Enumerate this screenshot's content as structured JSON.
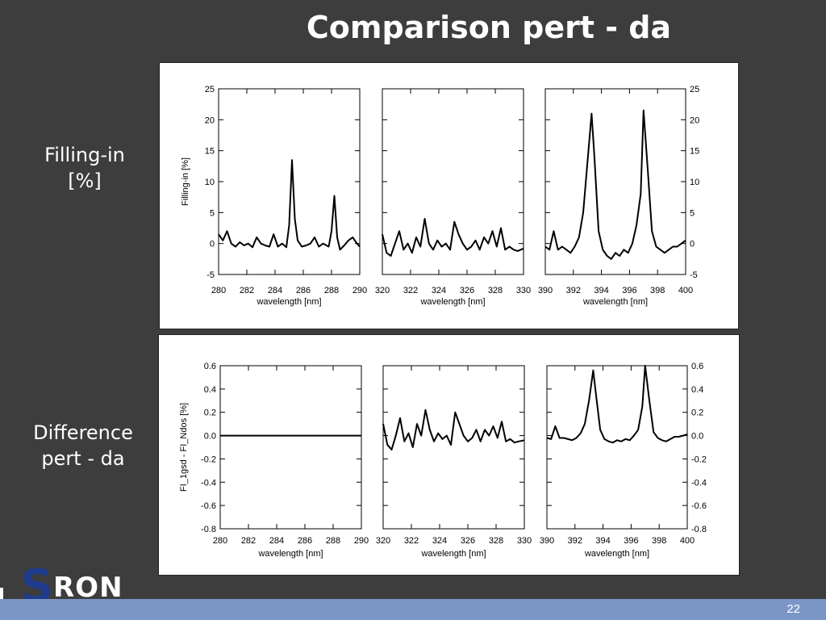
{
  "slide": {
    "title": "Comparison pert - da",
    "label_top": [
      "Filling-in",
      "[%]"
    ],
    "label_bottom": [
      "Difference",
      "pert - da"
    ],
    "page_number": "22",
    "logo_s": "S",
    "logo_rest": "RON"
  },
  "chart_data": [
    {
      "type": "line",
      "title": "",
      "ylabel": "Filling-in [%]",
      "ylim": [
        -5,
        25
      ],
      "yticks": [
        -5,
        0,
        5,
        10,
        15,
        20,
        25
      ],
      "panels": [
        {
          "xlabel": "wavelength [nm]",
          "xlim": [
            280,
            290
          ],
          "xticks": [
            280,
            282,
            284,
            286,
            288,
            290
          ],
          "series": [
            {
              "x": [
                280,
                280.3,
                280.6,
                280.9,
                281.2,
                281.5,
                281.8,
                282.1,
                282.4,
                282.7,
                283.0,
                283.3,
                283.6,
                283.9,
                284.2,
                284.5,
                284.8,
                285.0,
                285.2,
                285.4,
                285.6,
                285.9,
                286.2,
                286.5,
                286.8,
                287.1,
                287.4,
                287.8,
                288.0,
                288.2,
                288.4,
                288.6,
                288.9,
                289.2,
                289.5,
                289.8,
                290
              ],
              "y": [
                1.5,
                0.5,
                2.0,
                0.0,
                -0.5,
                0.2,
                -0.3,
                0.0,
                -0.6,
                1.0,
                0.0,
                -0.3,
                -0.5,
                1.5,
                -0.5,
                0.0,
                -0.6,
                3.0,
                13.5,
                4.0,
                0.5,
                -0.5,
                -0.3,
                0.0,
                1.0,
                -0.5,
                0.0,
                -0.5,
                2.0,
                7.7,
                1.0,
                -1.0,
                -0.3,
                0.5,
                1.0,
                0.0,
                -0.5
              ]
            }
          ]
        },
        {
          "xlabel": "wavelength [nm]",
          "xlim": [
            320,
            330
          ],
          "xticks": [
            320,
            322,
            324,
            326,
            328,
            330
          ],
          "series": [
            {
              "x": [
                320,
                320.3,
                320.6,
                320.9,
                321.2,
                321.5,
                321.8,
                322.1,
                322.4,
                322.7,
                323.0,
                323.3,
                323.6,
                323.9,
                324.2,
                324.5,
                324.8,
                325.1,
                325.4,
                325.7,
                326.0,
                326.3,
                326.6,
                326.9,
                327.2,
                327.5,
                327.8,
                328.1,
                328.4,
                328.7,
                329.0,
                329.3,
                329.6,
                330
              ],
              "y": [
                1.5,
                -1.5,
                -2.0,
                0.0,
                2.0,
                -1.0,
                0.0,
                -1.5,
                1.0,
                -0.5,
                4.0,
                0.0,
                -1.0,
                0.5,
                -0.5,
                0.0,
                -1.0,
                3.5,
                1.5,
                0.0,
                -1.0,
                -0.5,
                0.5,
                -1.0,
                1.0,
                0.0,
                2.0,
                -0.5,
                2.5,
                -1.0,
                -0.5,
                -1.0,
                -1.2,
                -0.8
              ]
            }
          ]
        },
        {
          "xlabel": "wavelength [nm]",
          "xlim": [
            390,
            400
          ],
          "xticks": [
            390,
            392,
            394,
            396,
            398,
            400
          ],
          "series": [
            {
              "x": [
                390,
                390.3,
                390.6,
                390.9,
                391.2,
                391.5,
                391.8,
                392.1,
                392.4,
                392.7,
                393.0,
                393.3,
                393.5,
                393.8,
                394.1,
                394.4,
                394.7,
                395.0,
                395.3,
                395.6,
                395.9,
                396.2,
                396.5,
                396.8,
                397.0,
                397.3,
                397.6,
                397.9,
                398.2,
                398.5,
                398.8,
                399.1,
                399.4,
                399.7,
                400
              ],
              "y": [
                -0.5,
                -1.0,
                2.0,
                -1.0,
                -0.5,
                -1.0,
                -1.5,
                -0.5,
                1.0,
                5.0,
                13.0,
                21.0,
                14.0,
                2.0,
                -1.0,
                -2.0,
                -2.5,
                -1.5,
                -2.0,
                -1.0,
                -1.5,
                0.0,
                3.0,
                8.0,
                21.5,
                12.0,
                2.0,
                -0.5,
                -1.0,
                -1.5,
                -1.0,
                -0.5,
                -0.5,
                0.0,
                0.5
              ]
            }
          ]
        }
      ]
    },
    {
      "type": "line",
      "title": "",
      "ylabel": "FI_1gsd - FI_Ndos [%]",
      "ylim": [
        -0.8,
        0.6
      ],
      "yticks": [
        -0.8,
        -0.6,
        -0.4,
        -0.2,
        0.0,
        0.2,
        0.4,
        0.6
      ],
      "panels": [
        {
          "xlabel": "wavelength [nm]",
          "xlim": [
            280,
            290
          ],
          "xticks": [
            280,
            282,
            284,
            286,
            288,
            290
          ],
          "series": [
            {
              "x": [
                280,
                290
              ],
              "y": [
                0.0,
                0.0
              ]
            }
          ]
        },
        {
          "xlabel": "wavelength [nm]",
          "xlim": [
            320,
            330
          ],
          "xticks": [
            320,
            322,
            324,
            326,
            328,
            330
          ],
          "series": [
            {
              "x": [
                320,
                320.3,
                320.6,
                320.9,
                321.2,
                321.5,
                321.8,
                322.1,
                322.4,
                322.7,
                323.0,
                323.3,
                323.6,
                323.9,
                324.2,
                324.5,
                324.8,
                325.1,
                325.4,
                325.7,
                326.0,
                326.3,
                326.6,
                326.9,
                327.2,
                327.5,
                327.8,
                328.1,
                328.4,
                328.7,
                329.0,
                329.3,
                329.6,
                330
              ],
              "y": [
                0.1,
                -0.08,
                -0.12,
                0.0,
                0.15,
                -0.05,
                0.02,
                -0.1,
                0.1,
                0.0,
                0.22,
                0.05,
                -0.05,
                0.02,
                -0.03,
                0.0,
                -0.08,
                0.2,
                0.1,
                0.0,
                -0.05,
                -0.02,
                0.05,
                -0.05,
                0.05,
                0.0,
                0.08,
                -0.02,
                0.12,
                -0.05,
                -0.03,
                -0.06,
                -0.05,
                -0.04
              ]
            }
          ]
        },
        {
          "xlabel": "wavelength [nm]",
          "xlim": [
            390,
            400
          ],
          "xticks": [
            390,
            392,
            394,
            396,
            398,
            400
          ],
          "series": [
            {
              "x": [
                390,
                390.3,
                390.6,
                390.9,
                391.2,
                391.5,
                391.8,
                392.1,
                392.4,
                392.7,
                393.0,
                393.3,
                393.5,
                393.8,
                394.1,
                394.4,
                394.7,
                395.0,
                395.3,
                395.6,
                395.9,
                396.2,
                396.5,
                396.8,
                397.0,
                397.3,
                397.6,
                397.9,
                398.2,
                398.5,
                398.8,
                399.1,
                399.4,
                399.7,
                400
              ],
              "y": [
                -0.02,
                -0.03,
                0.08,
                -0.02,
                -0.02,
                -0.03,
                -0.04,
                -0.02,
                0.02,
                0.1,
                0.3,
                0.56,
                0.35,
                0.05,
                -0.03,
                -0.05,
                -0.06,
                -0.04,
                -0.05,
                -0.03,
                -0.04,
                0.0,
                0.05,
                0.25,
                0.6,
                0.3,
                0.03,
                -0.02,
                -0.04,
                -0.05,
                -0.03,
                -0.01,
                -0.01,
                0.0,
                0.01
              ]
            }
          ]
        }
      ]
    }
  ]
}
